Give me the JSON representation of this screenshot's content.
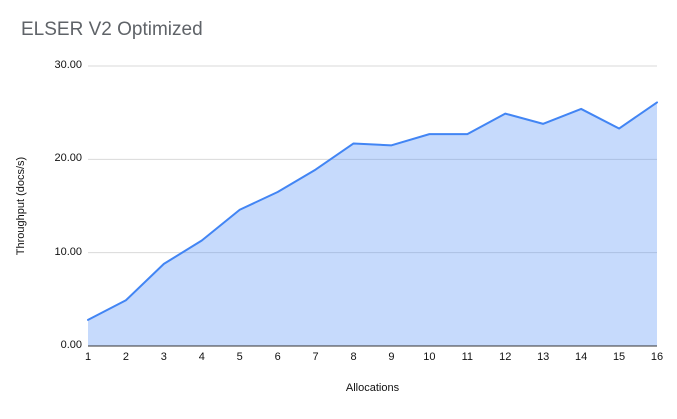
{
  "page": {
    "background": "#ffffff"
  },
  "chart_data": {
    "type": "area",
    "title": "ELSER V2 Optimized",
    "xlabel": "Allocations",
    "ylabel": "Throughput (docs/s)",
    "x": [
      1,
      2,
      3,
      4,
      5,
      6,
      7,
      8,
      9,
      10,
      11,
      12,
      13,
      14,
      15,
      16
    ],
    "series": [
      {
        "name": "Throughput",
        "values": [
          2.8,
          4.9,
          8.8,
          11.3,
          14.6,
          16.5,
          18.9,
          21.7,
          21.5,
          22.7,
          22.7,
          24.9,
          23.8,
          25.4,
          23.3,
          26.1
        ]
      }
    ],
    "xlim": [
      1,
      16
    ],
    "ylim": [
      0,
      30
    ],
    "yticks": [
      0,
      10,
      20,
      30
    ],
    "ytick_labels": [
      "0.00",
      "10.00",
      "20.00",
      "30.00"
    ],
    "xtick_labels": [
      "1",
      "2",
      "3",
      "4",
      "5",
      "6",
      "7",
      "8",
      "9",
      "10",
      "11",
      "12",
      "13",
      "14",
      "15",
      "16"
    ],
    "grid": true,
    "legend": "none",
    "colors": {
      "line": "#4285f4",
      "fill": "#4285f4",
      "fill_opacity": 0.3,
      "grid": "#dadada",
      "axis": "#333333",
      "title": "#5f6368",
      "tick": "#111111"
    }
  }
}
